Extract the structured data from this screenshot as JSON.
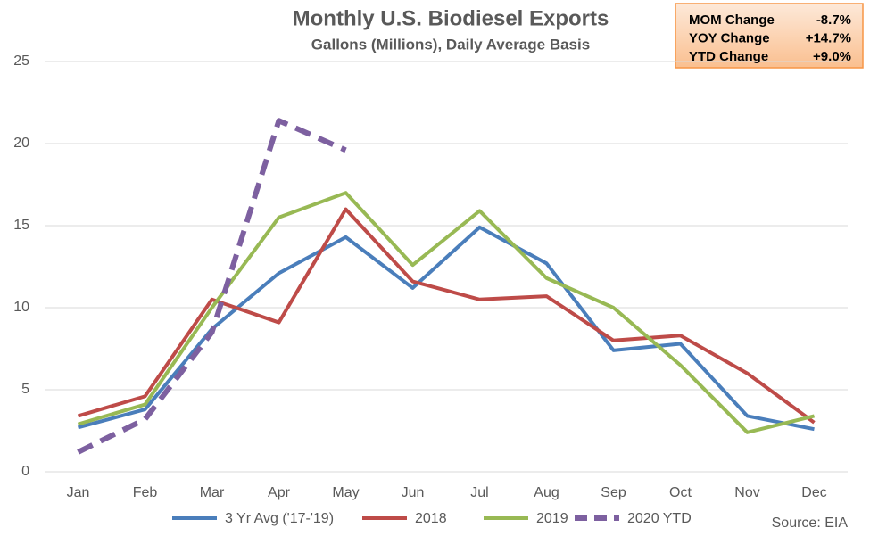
{
  "chart_data": {
    "type": "line",
    "title": "Monthly U.S. Biodiesel Exports",
    "subtitle": "Gallons (Millions), Daily Average Basis",
    "categories": [
      "Jan",
      "Feb",
      "Mar",
      "Apr",
      "May",
      "Jun",
      "Jul",
      "Aug",
      "Sep",
      "Oct",
      "Nov",
      "Dec"
    ],
    "series": [
      {
        "name": "3 Yr Avg ('17-'19)",
        "color": "#4a7ebb",
        "dashed": false,
        "values": [
          2.7,
          3.8,
          8.7,
          12.1,
          14.3,
          11.2,
          14.9,
          12.7,
          7.4,
          7.8,
          3.4,
          2.6
        ]
      },
      {
        "name": "2018",
        "color": "#be4b48",
        "dashed": false,
        "values": [
          3.4,
          4.6,
          10.5,
          9.1,
          16.0,
          11.6,
          10.5,
          10.7,
          8.0,
          8.3,
          6.0,
          3.0
        ]
      },
      {
        "name": "2019",
        "color": "#98b954",
        "dashed": false,
        "values": [
          2.9,
          4.1,
          10.0,
          15.5,
          17.0,
          12.6,
          15.9,
          11.8,
          10.0,
          6.5,
          2.4,
          3.4
        ]
      },
      {
        "name": "2020 YTD",
        "color": "#7d60a0",
        "dashed": true,
        "values": [
          1.2,
          3.2,
          8.5,
          21.4,
          19.6,
          null,
          null,
          null,
          null,
          null,
          null,
          null
        ]
      }
    ],
    "ylim": [
      0,
      25
    ],
    "yticks": [
      0,
      5,
      10,
      15,
      20,
      25
    ],
    "grid": true,
    "legend": "bottom",
    "source": "Source: EIA",
    "summary": [
      {
        "label": "MOM Change",
        "value": "-8.7%"
      },
      {
        "label": "YOY Change",
        "value": "+14.7%"
      },
      {
        "label": "YTD Change",
        "value": "+9.0%"
      }
    ]
  }
}
